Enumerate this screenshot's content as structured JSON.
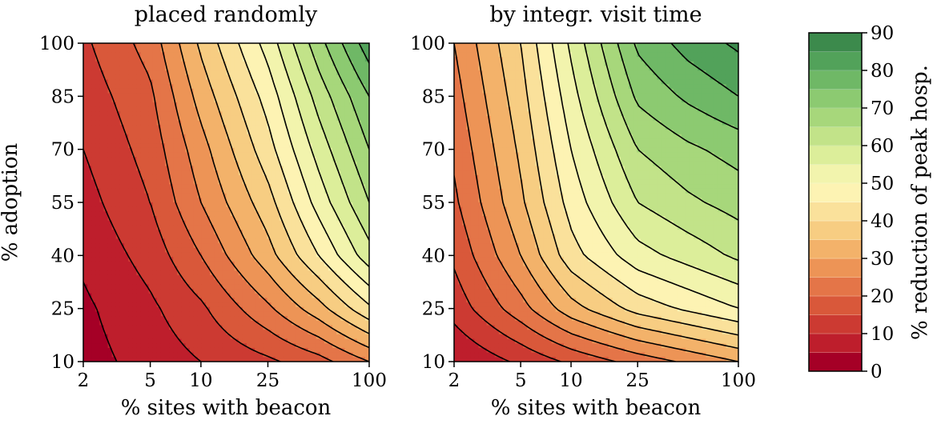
{
  "chart_data": [
    {
      "type": "contour",
      "title": "placed randomly",
      "xlabel": "% sites with beacon",
      "ylabel": "% adoption",
      "xscale": "log",
      "xlim": [
        2,
        100
      ],
      "ylim": [
        10,
        100
      ],
      "xticks": [
        2,
        5,
        10,
        25,
        100
      ],
      "yticks": [
        10,
        25,
        40,
        55,
        70,
        85,
        100
      ],
      "x": [
        2,
        5,
        10,
        25,
        50,
        100
      ],
      "y": [
        10,
        25,
        40,
        55,
        70,
        85,
        100
      ],
      "z": [
        [
          3,
          7,
          10,
          14,
          18,
          25
        ],
        [
          4,
          9,
          14,
          24,
          33,
          44
        ],
        [
          6,
          12,
          20,
          33,
          45,
          58
        ],
        [
          8,
          15,
          25,
          38,
          52,
          65
        ],
        [
          10,
          17,
          28,
          43,
          57,
          70
        ],
        [
          12,
          19,
          32,
          47,
          62,
          75
        ],
        [
          14,
          22,
          36,
          52,
          68,
          83
        ]
      ]
    },
    {
      "type": "contour",
      "title": "by integr. visit time",
      "xlabel": "% sites with beacon",
      "ylabel": "",
      "xscale": "log",
      "xlim": [
        2,
        100
      ],
      "ylim": [
        10,
        100
      ],
      "xticks": [
        2,
        5,
        10,
        25,
        100
      ],
      "yticks": [
        10,
        25,
        40,
        55,
        70,
        85,
        100
      ],
      "x": [
        2,
        5,
        10,
        25,
        50,
        100
      ],
      "y": [
        10,
        25,
        40,
        55,
        70,
        85,
        100
      ],
      "z": [
        [
          5,
          11,
          16,
          22,
          26,
          30
        ],
        [
          12,
          23,
          33,
          42,
          46,
          50
        ],
        [
          16,
          30,
          43,
          53,
          57,
          61
        ],
        [
          19,
          34,
          47,
          60,
          64,
          67
        ],
        [
          21,
          36,
          50,
          65,
          69,
          72
        ],
        [
          23,
          38,
          53,
          71,
          76,
          80
        ],
        [
          25,
          40,
          56,
          76,
          82,
          86
        ]
      ]
    }
  ],
  "colorbar": {
    "label": "% reduction of peak hosp.",
    "range": [
      0,
      90
    ],
    "step": 5,
    "ticks": [
      0,
      10,
      20,
      30,
      40,
      50,
      60,
      70,
      80,
      90
    ],
    "colormap": "RdYlGn",
    "colors": [
      "#a50026",
      "#be1e2c",
      "#cc3a32",
      "#d9583a",
      "#e47548",
      "#ed9456",
      "#f3b26a",
      "#f7cd82",
      "#fae19b",
      "#fdf3b3",
      "#f2f4ad",
      "#dcee9a",
      "#c2e389",
      "#a7d77b",
      "#8cca71",
      "#6fb866",
      "#52a25a",
      "#3c8a4c"
    ]
  }
}
